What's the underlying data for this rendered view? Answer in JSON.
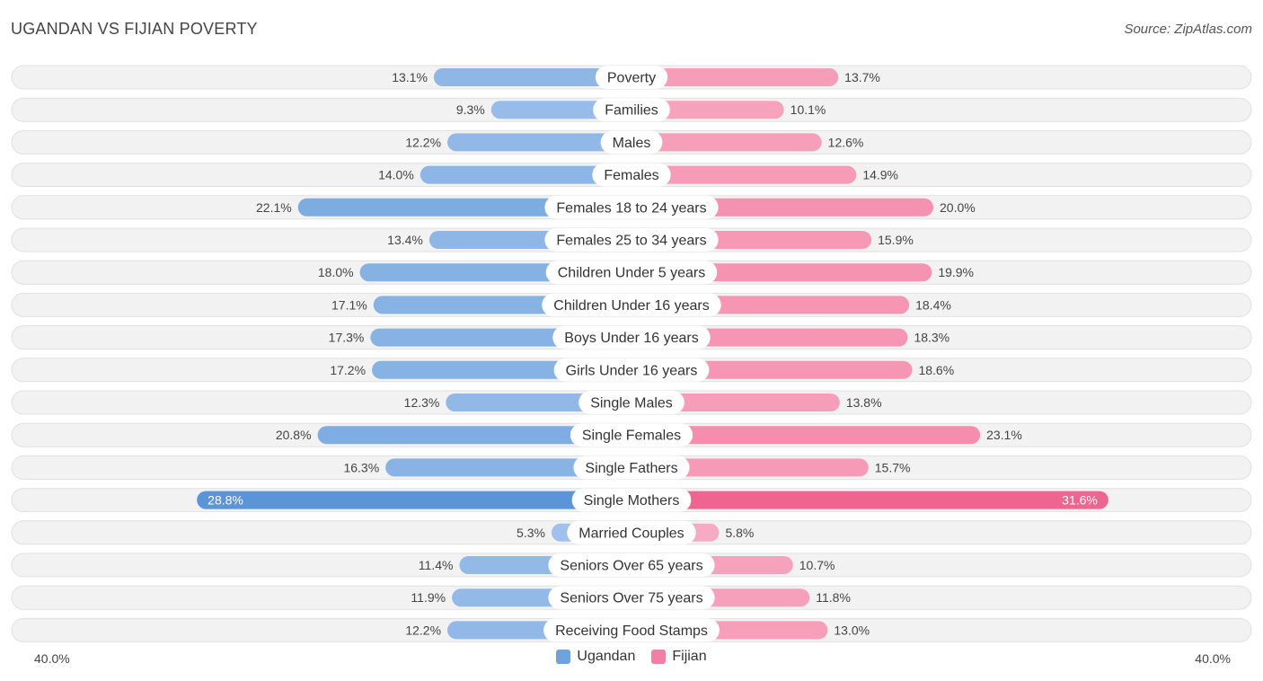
{
  "header": {
    "title": "UGANDAN VS FIJIAN POVERTY",
    "source": "Source: ZipAtlas.com"
  },
  "colors": {
    "ugandan": "#6fa3dd",
    "ugandan_light": "#aac8ee",
    "fijian": "#f47fa4",
    "fijian_light": "#f8b4ca"
  },
  "chart_data": {
    "type": "bar",
    "orientation": "horizontal-diverging",
    "title": "UGANDAN VS FIJIAN POVERTY",
    "categories": [
      "Poverty",
      "Families",
      "Males",
      "Females",
      "Females 18 to 24 years",
      "Females 25 to 34 years",
      "Children Under 5 years",
      "Children Under 16 years",
      "Boys Under 16 years",
      "Girls Under 16 years",
      "Single Males",
      "Single Females",
      "Single Fathers",
      "Single Mothers",
      "Married Couples",
      "Seniors Over 65 years",
      "Seniors Over 75 years",
      "Receiving Food Stamps"
    ],
    "series": [
      {
        "name": "Ugandan",
        "values": [
          13.1,
          9.3,
          12.2,
          14.0,
          22.1,
          13.4,
          18.0,
          17.1,
          17.3,
          17.2,
          12.3,
          20.8,
          16.3,
          28.8,
          5.3,
          11.4,
          11.9,
          12.2
        ],
        "labels": [
          "13.1%",
          "9.3%",
          "12.2%",
          "14.0%",
          "22.1%",
          "13.4%",
          "18.0%",
          "17.1%",
          "17.3%",
          "17.2%",
          "12.3%",
          "20.8%",
          "16.3%",
          "28.8%",
          "5.3%",
          "11.4%",
          "11.9%",
          "12.2%"
        ]
      },
      {
        "name": "Fijian",
        "values": [
          13.7,
          10.1,
          12.6,
          14.9,
          20.0,
          15.9,
          19.9,
          18.4,
          18.3,
          18.6,
          13.8,
          23.1,
          15.7,
          31.6,
          5.8,
          10.7,
          11.8,
          13.0
        ],
        "labels": [
          "13.7%",
          "10.1%",
          "12.6%",
          "14.9%",
          "20.0%",
          "15.9%",
          "19.9%",
          "18.4%",
          "18.3%",
          "18.6%",
          "13.8%",
          "23.1%",
          "15.7%",
          "31.6%",
          "5.8%",
          "10.7%",
          "11.8%",
          "13.0%"
        ]
      }
    ],
    "xlim": [
      -40,
      40
    ],
    "axis_labels": {
      "left": "40.0%",
      "right": "40.0%"
    },
    "legend": [
      "Ugandan",
      "Fijian"
    ],
    "legend_position": "bottom-center",
    "highlight_index": 13
  }
}
